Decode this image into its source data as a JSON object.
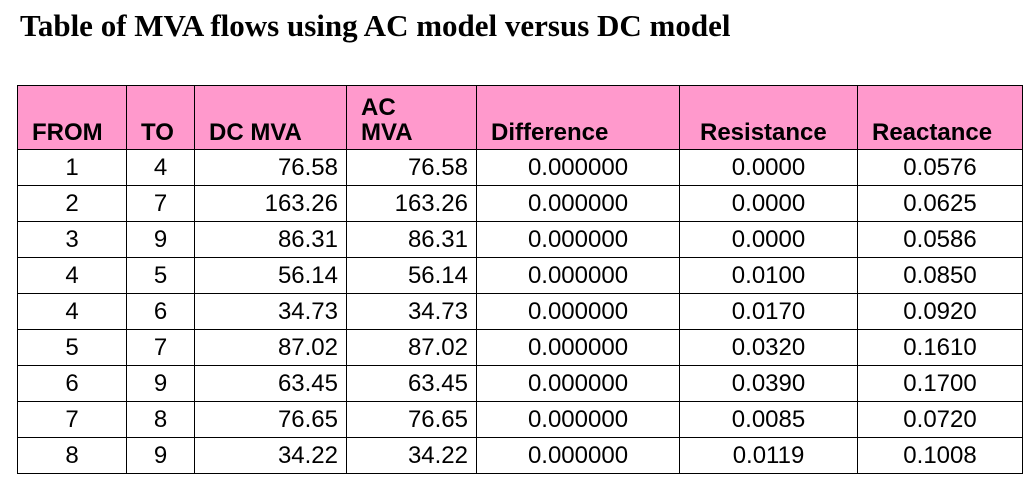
{
  "title": "Table of MVA flows using AC model versus DC model",
  "table": {
    "headers": [
      "FROM",
      "TO",
      "DC MVA",
      "AC\nMVA",
      "Difference",
      "Resistance",
      "Reactance"
    ],
    "rows": [
      [
        "1",
        "4",
        "76.58",
        "76.58",
        "0.000000",
        "0.0000",
        "0.0576"
      ],
      [
        "2",
        "7",
        "163.26",
        "163.26",
        "0.000000",
        "0.0000",
        "0.0625"
      ],
      [
        "3",
        "9",
        "86.31",
        "86.31",
        "0.000000",
        "0.0000",
        "0.0586"
      ],
      [
        "4",
        "5",
        "56.14",
        "56.14",
        "0.000000",
        "0.0100",
        "0.0850"
      ],
      [
        "4",
        "6",
        "34.73",
        "34.73",
        "0.000000",
        "0.0170",
        "0.0920"
      ],
      [
        "5",
        "7",
        "87.02",
        "87.02",
        "0.000000",
        "0.0320",
        "0.1610"
      ],
      [
        "6",
        "9",
        "63.45",
        "63.45",
        "0.000000",
        "0.0390",
        "0.1700"
      ],
      [
        "7",
        "8",
        "76.65",
        "76.65",
        "0.000000",
        "0.0085",
        "0.0720"
      ],
      [
        "8",
        "9",
        "34.22",
        "34.22",
        "0.000000",
        "0.0119",
        "0.1008"
      ]
    ]
  },
  "colors": {
    "header_background": "#ff99cc",
    "border": "#000000",
    "text": "#000000"
  }
}
